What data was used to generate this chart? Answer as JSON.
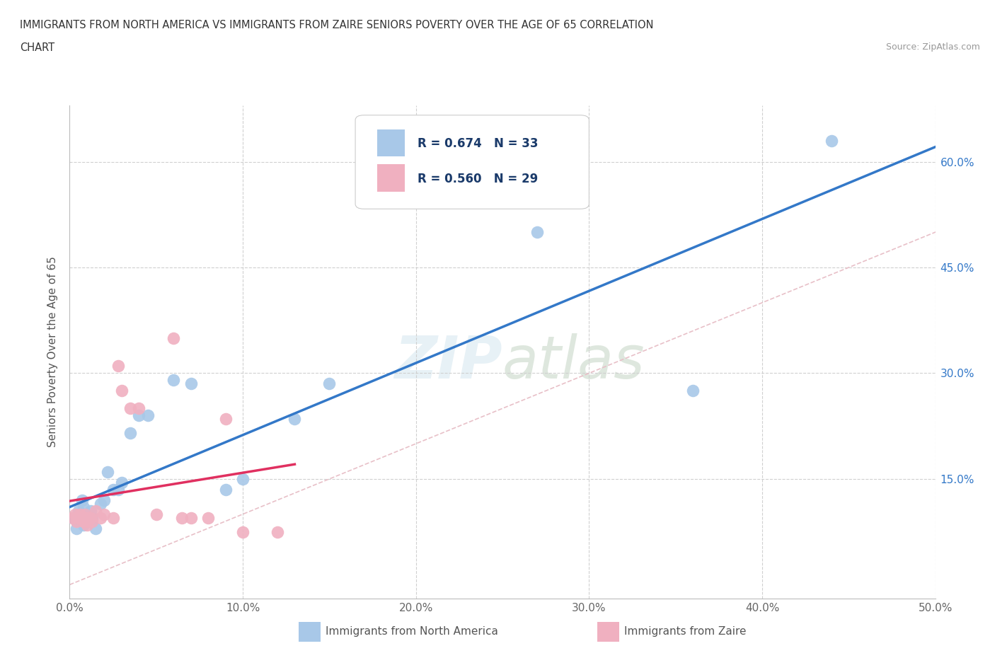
{
  "title_line1": "IMMIGRANTS FROM NORTH AMERICA VS IMMIGRANTS FROM ZAIRE SENIORS POVERTY OVER THE AGE OF 65 CORRELATION",
  "title_line2": "CHART",
  "source_text": "Source: ZipAtlas.com",
  "ylabel": "Seniors Poverty Over the Age of 65",
  "watermark": "ZIPatlas",
  "xlim": [
    0.0,
    0.5
  ],
  "ylim": [
    -0.02,
    0.68
  ],
  "xticks": [
    0.0,
    0.1,
    0.2,
    0.3,
    0.4,
    0.5
  ],
  "xticklabels": [
    "0.0%",
    "10.0%",
    "20.0%",
    "30.0%",
    "40.0%",
    "50.0%"
  ],
  "ytick_positions": [
    0.0,
    0.15,
    0.3,
    0.45,
    0.6
  ],
  "ytick_labels_right": [
    "",
    "15.0%",
    "30.0%",
    "45.0%",
    "60.0%"
  ],
  "north_america_color": "#a8c8e8",
  "zaire_color": "#f0b0c0",
  "trend_north_america_color": "#3378c8",
  "trend_zaire_color": "#e03060",
  "diagonal_color": "#e8c0c8",
  "background_color": "#ffffff",
  "grid_color": "#d0d0d0",
  "north_america_x": [
    0.002,
    0.003,
    0.004,
    0.005,
    0.005,
    0.006,
    0.007,
    0.008,
    0.008,
    0.009,
    0.01,
    0.011,
    0.012,
    0.013,
    0.015,
    0.018,
    0.02,
    0.022,
    0.025,
    0.028,
    0.03,
    0.035,
    0.04,
    0.045,
    0.06,
    0.07,
    0.09,
    0.1,
    0.13,
    0.15,
    0.27,
    0.36,
    0.44
  ],
  "north_america_y": [
    0.095,
    0.095,
    0.08,
    0.095,
    0.105,
    0.095,
    0.12,
    0.085,
    0.11,
    0.095,
    0.09,
    0.095,
    0.105,
    0.095,
    0.08,
    0.115,
    0.12,
    0.16,
    0.135,
    0.135,
    0.145,
    0.215,
    0.24,
    0.24,
    0.29,
    0.285,
    0.135,
    0.15,
    0.235,
    0.285,
    0.5,
    0.275,
    0.63
  ],
  "zaire_x": [
    0.002,
    0.003,
    0.004,
    0.005,
    0.006,
    0.007,
    0.008,
    0.009,
    0.01,
    0.01,
    0.01,
    0.012,
    0.013,
    0.015,
    0.018,
    0.02,
    0.025,
    0.028,
    0.03,
    0.035,
    0.04,
    0.05,
    0.06,
    0.065,
    0.07,
    0.08,
    0.09,
    0.1,
    0.12
  ],
  "zaire_y": [
    0.095,
    0.1,
    0.09,
    0.095,
    0.1,
    0.095,
    0.09,
    0.1,
    0.09,
    0.085,
    0.095,
    0.095,
    0.09,
    0.105,
    0.095,
    0.1,
    0.095,
    0.31,
    0.275,
    0.25,
    0.25,
    0.1,
    0.35,
    0.095,
    0.095,
    0.095,
    0.235,
    0.075,
    0.075
  ]
}
